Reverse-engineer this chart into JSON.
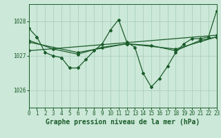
{
  "background_color": "#cce8d8",
  "grid_color": "#aacfbc",
  "line_color": "#1a5c2a",
  "title": "Graphe pression niveau de la mer (hPa)",
  "xlim": [
    0,
    23
  ],
  "ylim": [
    1025.5,
    1028.5
  ],
  "yticks": [
    1026,
    1027,
    1028
  ],
  "xticks": [
    0,
    1,
    2,
    3,
    4,
    5,
    6,
    7,
    8,
    9,
    10,
    11,
    12,
    13,
    14,
    15,
    16,
    17,
    18,
    19,
    20,
    21,
    22,
    23
  ],
  "series1_x": [
    0,
    1,
    2,
    3,
    4,
    5,
    6,
    7,
    8,
    9,
    10,
    11,
    12,
    13,
    14,
    15,
    16,
    17,
    18,
    19,
    20,
    21,
    22,
    23
  ],
  "series1_y": [
    1027.8,
    1027.55,
    1027.1,
    1027.0,
    1026.95,
    1026.65,
    1026.65,
    1026.9,
    1027.15,
    1027.35,
    1027.75,
    1028.05,
    1027.4,
    1027.25,
    1026.5,
    1026.1,
    1026.35,
    1026.7,
    1027.1,
    1027.35,
    1027.5,
    1027.5,
    1027.55,
    1028.3
  ],
  "series2_x": [
    0,
    3,
    6,
    9,
    12,
    15,
    18,
    21,
    23
  ],
  "series2_y": [
    1027.45,
    1027.2,
    1027.05,
    1027.25,
    1027.35,
    1027.3,
    1027.15,
    1027.45,
    1027.55
  ],
  "series3_x": [
    0,
    6,
    12,
    18,
    23
  ],
  "series3_y": [
    1027.4,
    1027.1,
    1027.35,
    1027.2,
    1027.55
  ],
  "series4_x": [
    0,
    23
  ],
  "series4_y": [
    1027.15,
    1027.6
  ],
  "title_fontsize": 7,
  "tick_fontsize": 5.5
}
